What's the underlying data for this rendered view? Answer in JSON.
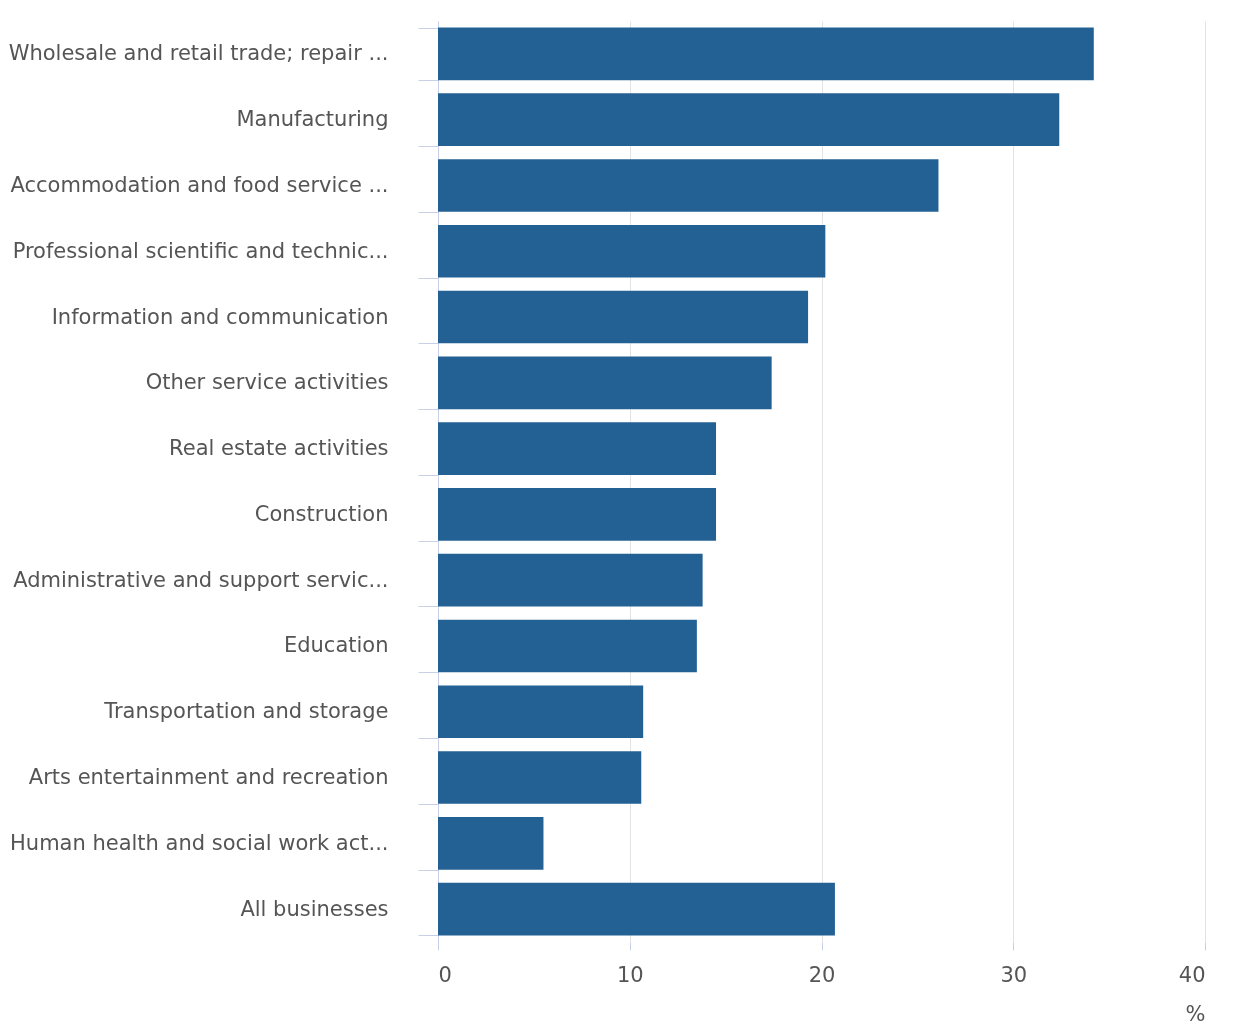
{
  "chart_data": {
    "type": "bar",
    "orientation": "horizontal",
    "xlabel": "%",
    "categories": [
      "Wholesale and retail trade; repair ...",
      "Manufacturing",
      "Accommodation and food service ...",
      "Professional scientific and technic...",
      "Information and communication",
      "Other service activities",
      "Real estate activities",
      "Construction",
      "Administrative and support servic...",
      "Education",
      "Transportation and storage",
      "Arts entertainment and recreation",
      "Human health and social work act...",
      "All businesses"
    ],
    "values": [
      34.2,
      32.4,
      26.1,
      20.2,
      19.3,
      17.4,
      14.5,
      14.5,
      13.8,
      13.5,
      10.7,
      10.6,
      5.5,
      20.7
    ],
    "color": "#236094",
    "xlim": [
      0,
      40
    ],
    "xticks": [
      0,
      10,
      20,
      30,
      40
    ],
    "grid": "x"
  }
}
